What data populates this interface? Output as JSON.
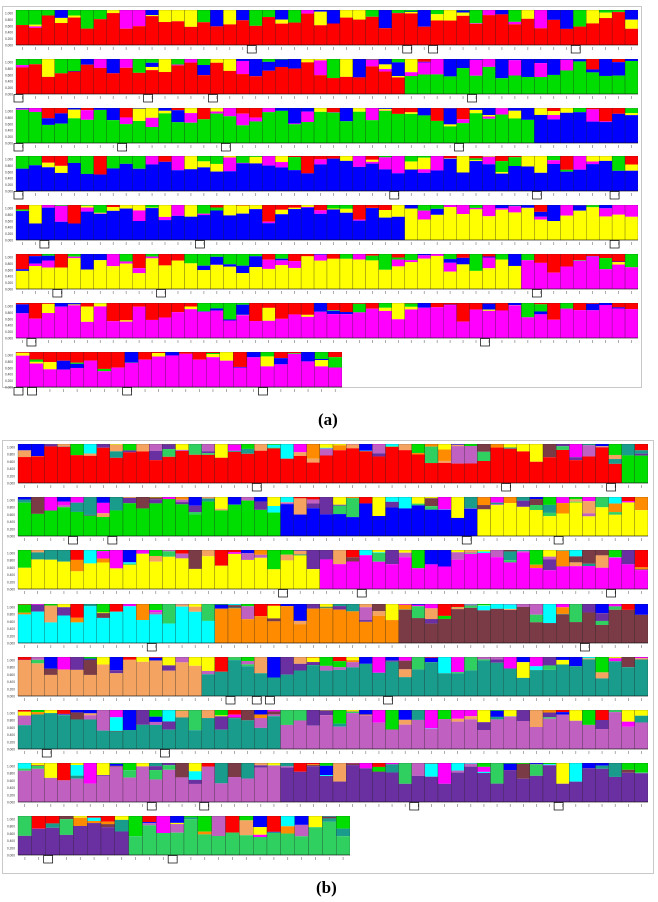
{
  "figure": {
    "panels": [
      {
        "label": "(a)"
      },
      {
        "label": "(b)"
      }
    ]
  },
  "cluster_colors": {
    "a": [
      "#ff0000",
      "#00dd00",
      "#0000ff",
      "#ffff00",
      "#ff00ff"
    ],
    "b": [
      "#ff0000",
      "#00dd00",
      "#0000ff",
      "#ffff00",
      "#ff00ff",
      "#00ffff",
      "#ff8c00",
      "#7a3b46",
      "#f4a460",
      "#1a9c8c",
      "#c060c0",
      "#6a2fa0",
      "#30d060"
    ]
  },
  "chart_data": [
    {
      "type": "bar",
      "stacked": true,
      "panel": "(a)",
      "clusters": 5,
      "ylim": [
        0,
        1
      ],
      "y_ticks": [
        "1.000",
        "0.800",
        "0.600",
        "0.400",
        "0.200",
        "0.000"
      ],
      "rows": [
        {
          "segments": [
            {
              "cluster": 1,
              "bars": 48
            }
          ]
        },
        {
          "segments": [
            {
              "cluster": 1,
              "bars": 30
            },
            {
              "cluster": 2,
              "bars": 18
            }
          ]
        },
        {
          "segments": [
            {
              "cluster": 2,
              "bars": 40
            },
            {
              "cluster": 3,
              "bars": 8
            }
          ]
        },
        {
          "segments": [
            {
              "cluster": 3,
              "bars": 48
            }
          ]
        },
        {
          "segments": [
            {
              "cluster": 3,
              "bars": 30
            },
            {
              "cluster": 4,
              "bars": 18
            }
          ]
        },
        {
          "segments": [
            {
              "cluster": 4,
              "bars": 39
            },
            {
              "cluster": 5,
              "bars": 9
            }
          ]
        },
        {
          "segments": [
            {
              "cluster": 5,
              "bars": 48
            }
          ]
        },
        {
          "segments": [
            {
              "cluster": 5,
              "bars": 24
            }
          ]
        }
      ]
    },
    {
      "type": "bar",
      "stacked": true,
      "panel": "(b)",
      "clusters": 13,
      "ylim": [
        0,
        1
      ],
      "y_ticks": [
        "1.000",
        "0.800",
        "0.600",
        "0.400",
        "0.200",
        "0.000"
      ],
      "rows": [
        {
          "segments": [
            {
              "cluster": 1,
              "bars": 46
            },
            {
              "cluster": 2,
              "bars": 2
            }
          ]
        },
        {
          "segments": [
            {
              "cluster": 2,
              "bars": 20
            },
            {
              "cluster": 3,
              "bars": 15
            },
            {
              "cluster": 4,
              "bars": 13
            }
          ]
        },
        {
          "segments": [
            {
              "cluster": 4,
              "bars": 23
            },
            {
              "cluster": 5,
              "bars": 25
            }
          ]
        },
        {
          "segments": [
            {
              "cluster": 6,
              "bars": 15
            },
            {
              "cluster": 7,
              "bars": 14
            },
            {
              "cluster": 8,
              "bars": 19
            }
          ]
        },
        {
          "segments": [
            {
              "cluster": 9,
              "bars": 14
            },
            {
              "cluster": 10,
              "bars": 34
            }
          ]
        },
        {
          "segments": [
            {
              "cluster": 10,
              "bars": 20
            },
            {
              "cluster": 11,
              "bars": 28
            }
          ]
        },
        {
          "segments": [
            {
              "cluster": 11,
              "bars": 20
            },
            {
              "cluster": 12,
              "bars": 28
            }
          ]
        },
        {
          "segments": [
            {
              "cluster": 12,
              "bars": 8
            },
            {
              "cluster": 13,
              "bars": 16
            }
          ]
        }
      ]
    }
  ]
}
